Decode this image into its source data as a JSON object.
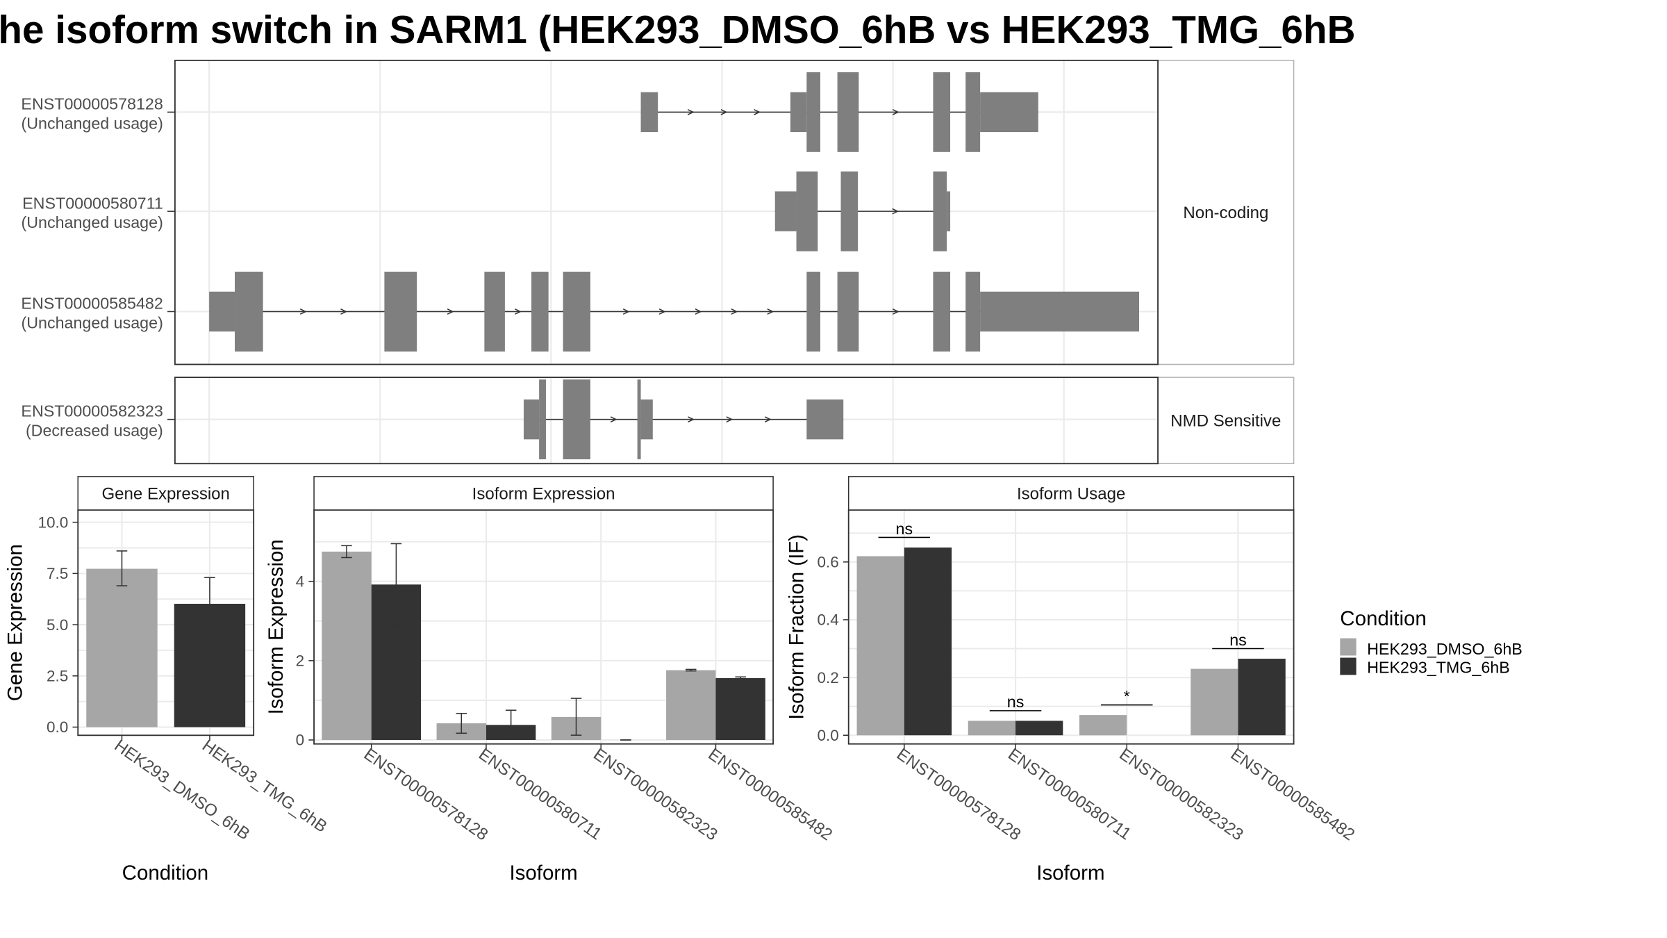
{
  "title": "he isoform switch in SARM1 (HEK293_DMSO_6hB vs HEK293_TMG_6hB",
  "colors": {
    "dmso": "#a6a6a6",
    "tmg": "#333333",
    "exon": "#7f7f7f",
    "intron": "#333333",
    "panel_border": "#333333",
    "strip_bg": "#ffffff",
    "grid": "#ebebeb"
  },
  "structure": {
    "groups": [
      {
        "strip_label": "Non-coding",
        "transcripts": [
          {
            "id": "ENST00000578128",
            "usage": "(Unchanged usage)",
            "exons": [
              {
                "start": 555,
                "end": 575,
                "tall": false
              },
              {
                "start": 730,
                "end": 749,
                "tall": false
              },
              {
                "start": 749,
                "end": 765,
                "tall": true
              },
              {
                "start": 785,
                "end": 810,
                "tall": true
              },
              {
                "start": 897,
                "end": 917,
                "tall": true
              },
              {
                "start": 935,
                "end": 952,
                "tall": true
              },
              {
                "start": 952,
                "end": 1020,
                "tall": false
              }
            ]
          },
          {
            "id": "ENST00000580711",
            "usage": "(Unchanged usage)",
            "exons": [
              {
                "start": 712,
                "end": 737,
                "tall": false
              },
              {
                "start": 737,
                "end": 762,
                "tall": true
              },
              {
                "start": 789,
                "end": 809,
                "tall": true
              },
              {
                "start": 897,
                "end": 913,
                "tall": true
              },
              {
                "start": 913,
                "end": 917,
                "tall": false
              }
            ]
          },
          {
            "id": "ENST00000585482",
            "usage": "(Unchanged usage)",
            "exons": [
              {
                "start": 50,
                "end": 80,
                "tall": false
              },
              {
                "start": 80,
                "end": 113,
                "tall": true
              },
              {
                "start": 255,
                "end": 293,
                "tall": true
              },
              {
                "start": 372,
                "end": 396,
                "tall": true
              },
              {
                "start": 427,
                "end": 447,
                "tall": true
              },
              {
                "start": 464,
                "end": 496,
                "tall": true
              },
              {
                "start": 749,
                "end": 765,
                "tall": true
              },
              {
                "start": 785,
                "end": 810,
                "tall": true
              },
              {
                "start": 897,
                "end": 917,
                "tall": true
              },
              {
                "start": 935,
                "end": 952,
                "tall": true
              },
              {
                "start": 952,
                "end": 1138,
                "tall": false
              }
            ]
          }
        ]
      },
      {
        "strip_label": "NMD Sensitive",
        "transcripts": [
          {
            "id": "ENST00000582323",
            "usage": "(Decreased usage)",
            "exons": [
              {
                "start": 418,
                "end": 436,
                "tall": false
              },
              {
                "start": 436,
                "end": 444,
                "tall": true
              },
              {
                "start": 464,
                "end": 496,
                "tall": true
              },
              {
                "start": 551,
                "end": 555,
                "tall": true
              },
              {
                "start": 555,
                "end": 569,
                "tall": false
              },
              {
                "start": 749,
                "end": 765,
                "tall": false
              },
              {
                "start": 765,
                "end": 792,
                "tall": false
              }
            ]
          }
        ]
      }
    ]
  },
  "chart_data": [
    {
      "type": "bar",
      "title": "Gene Expression",
      "xlabel": "Condition",
      "ylabel": "Gene Expression",
      "ylim": [
        -0.4,
        10.6
      ],
      "yticks": [
        "0.0",
        "2.5",
        "5.0",
        "7.5",
        "10.0"
      ],
      "categories": [
        "HEK293_DMSO_6hB",
        "HEK293_TMG_6hB"
      ],
      "series": [
        {
          "values": [
            7.73,
            6.02
          ],
          "err_low": [
            6.9,
            4.7
          ],
          "err_high": [
            8.6,
            7.3
          ],
          "series_index": 0
        }
      ],
      "per_category_colors": true
    },
    {
      "type": "bar",
      "title": "Isoform Expression",
      "xlabel": "Isoform",
      "ylabel": "Isoform Expression",
      "ylim": [
        -0.1,
        5.8
      ],
      "yticks": [
        "0",
        "2",
        "4"
      ],
      "categories": [
        "ENST00000578128",
        "ENST00000580711",
        "ENST00000582323",
        "ENST00000585482"
      ],
      "series": [
        {
          "name": "HEK293_DMSO_6hB",
          "values": [
            4.75,
            0.42,
            0.58,
            1.76
          ],
          "err_low": [
            4.6,
            0.17,
            0.12,
            1.74
          ],
          "err_high": [
            4.9,
            0.67,
            1.05,
            1.78
          ]
        },
        {
          "name": "HEK293_TMG_6hB",
          "values": [
            3.92,
            0.38,
            0.0,
            1.56
          ],
          "err_low": [
            2.9,
            0.02,
            0.0,
            1.53
          ],
          "err_high": [
            4.95,
            0.75,
            0.0,
            1.59
          ]
        }
      ]
    },
    {
      "type": "bar",
      "title": "Isoform Usage",
      "xlabel": "Isoform",
      "ylabel": "Isoform Fraction (IF)",
      "ylim": [
        -0.03,
        0.78
      ],
      "yticks": [
        "0.0",
        "0.2",
        "0.4",
        "0.6"
      ],
      "categories": [
        "ENST00000578128",
        "ENST00000580711",
        "ENST00000582323",
        "ENST00000585482"
      ],
      "series": [
        {
          "name": "HEK293_DMSO_6hB",
          "values": [
            0.62,
            0.05,
            0.07,
            0.23
          ]
        },
        {
          "name": "HEK293_TMG_6hB",
          "values": [
            0.65,
            0.05,
            0.0,
            0.265
          ]
        }
      ],
      "significance": [
        {
          "label": "ns",
          "y": 0.685
        },
        {
          "label": "ns",
          "y": 0.085
        },
        {
          "label": "*",
          "y": 0.105
        },
        {
          "label": "ns",
          "y": 0.3
        }
      ]
    }
  ],
  "legend": {
    "title": "Condition",
    "items": [
      "HEK293_DMSO_6hB",
      "HEK293_TMG_6hB"
    ]
  }
}
